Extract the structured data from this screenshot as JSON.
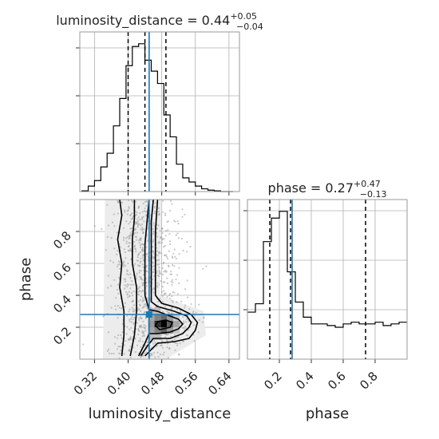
{
  "chart_data": {
    "type": "corner",
    "truth_color": "#1f77b4",
    "truth": {
      "luminosity_distance": 0.45,
      "phase": 0.28
    },
    "parameters": [
      {
        "name": "luminosity_distance",
        "label": "luminosity_distance",
        "range": [
          0.285,
          0.665
        ],
        "ticks": [
          0.32,
          0.4,
          0.48,
          0.56,
          0.64
        ],
        "tick_labels": [
          "0.32",
          "0.40",
          "0.48",
          "0.56",
          "0.64"
        ],
        "title_prefix": "luminosity_distance = 0.44",
        "title_sup": "+0.05",
        "title_sub": "−0.04",
        "median": 0.44,
        "quantiles": [
          0.4,
          0.44,
          0.49
        ],
        "histogram": {
          "bin_edges": [
            0.29,
            0.305,
            0.32,
            0.335,
            0.35,
            0.365,
            0.38,
            0.395,
            0.41,
            0.425,
            0.44,
            0.455,
            0.47,
            0.485,
            0.5,
            0.515,
            0.53,
            0.545,
            0.56,
            0.575,
            0.59,
            0.605,
            0.62,
            0.635,
            0.65
          ],
          "counts": [
            0.5,
            4,
            8,
            18,
            28,
            48,
            68,
            92,
            106,
            108,
            96,
            88,
            79,
            56,
            40,
            20,
            10,
            7,
            4,
            2,
            1,
            0.5,
            0,
            0
          ]
        }
      },
      {
        "name": "phase",
        "label": "phase",
        "range": [
          0.0,
          1.0
        ],
        "ticks": [
          0.2,
          0.4,
          0.6,
          0.8
        ],
        "tick_labels": [
          "0.2",
          "0.4",
          "0.6",
          "0.8"
        ],
        "title_prefix": "phase = 0.27",
        "title_sup": "+0.47",
        "title_sub": "−0.13",
        "median": 0.27,
        "quantiles": [
          0.14,
          0.27,
          0.74
        ],
        "histogram": {
          "bin_edges": [
            0.0,
            0.05,
            0.1,
            0.15,
            0.2,
            0.25,
            0.3,
            0.35,
            0.4,
            0.45,
            0.5,
            0.55,
            0.6,
            0.65,
            0.7,
            0.75,
            0.8,
            0.85,
            0.9,
            0.95,
            1.0
          ],
          "counts": [
            28,
            33,
            70,
            84,
            88,
            52,
            34,
            25,
            21,
            21,
            20,
            19,
            21,
            22,
            21,
            21,
            22,
            20,
            21,
            22
          ]
        }
      }
    ],
    "density_2d": {
      "x_param": "luminosity_distance",
      "y_param": "phase",
      "cells": [
        {
          "x": 0.485,
          "y": 0.22,
          "w": 1.0
        },
        {
          "x": 0.47,
          "y": 0.22,
          "w": 0.8
        },
        {
          "x": 0.5,
          "y": 0.22,
          "w": 0.6
        },
        {
          "x": 0.485,
          "y": 0.18,
          "w": 0.6
        },
        {
          "x": 0.485,
          "y": 0.26,
          "w": 0.55
        },
        {
          "x": 0.47,
          "y": 0.26,
          "w": 0.45
        },
        {
          "x": 0.47,
          "y": 0.18,
          "w": 0.45
        },
        {
          "x": 0.5,
          "y": 0.26,
          "w": 0.35
        },
        {
          "x": 0.5,
          "y": 0.18,
          "w": 0.35
        },
        {
          "x": 0.455,
          "y": 0.22,
          "w": 0.35
        },
        {
          "x": 0.455,
          "y": 0.26,
          "w": 0.3
        },
        {
          "x": 0.455,
          "y": 0.18,
          "w": 0.3
        },
        {
          "x": 0.515,
          "y": 0.22,
          "w": 0.3
        },
        {
          "x": 0.455,
          "y": 0.3,
          "w": 0.2
        },
        {
          "x": 0.47,
          "y": 0.3,
          "w": 0.2
        },
        {
          "x": 0.455,
          "y": 0.14,
          "w": 0.2
        },
        {
          "x": 0.47,
          "y": 0.14,
          "w": 0.2
        },
        {
          "x": 0.515,
          "y": 0.26,
          "w": 0.15
        },
        {
          "x": 0.515,
          "y": 0.18,
          "w": 0.15
        }
      ],
      "contours": [
        [
          [
            0.425,
            0.02
          ],
          [
            0.44,
            0.1
          ],
          [
            0.45,
            0.16
          ],
          [
            0.47,
            0.16
          ],
          [
            0.5,
            0.17
          ],
          [
            0.52,
            0.19
          ],
          [
            0.53,
            0.22
          ],
          [
            0.52,
            0.25
          ],
          [
            0.5,
            0.27
          ],
          [
            0.47,
            0.3
          ],
          [
            0.45,
            0.31
          ],
          [
            0.44,
            0.4
          ],
          [
            0.44,
            0.55
          ],
          [
            0.44,
            0.72
          ],
          [
            0.445,
            0.86
          ],
          [
            0.45,
            1.0
          ]
        ],
        [
          [
            0.405,
            0.02
          ],
          [
            0.415,
            0.15
          ],
          [
            0.42,
            0.3
          ],
          [
            0.42,
            0.45
          ],
          [
            0.41,
            0.6
          ],
          [
            0.41,
            0.75
          ],
          [
            0.415,
            0.88
          ],
          [
            0.415,
            1.0
          ]
        ],
        [
          [
            0.385,
            0.02
          ],
          [
            0.39,
            0.15
          ],
          [
            0.39,
            0.3
          ],
          [
            0.38,
            0.45
          ],
          [
            0.385,
            0.6
          ],
          [
            0.375,
            0.75
          ],
          [
            0.385,
            0.9
          ],
          [
            0.38,
            1.0
          ]
        ],
        [
          [
            0.43,
            0.02
          ],
          [
            0.445,
            0.08
          ],
          [
            0.46,
            0.13
          ],
          [
            0.5,
            0.13
          ],
          [
            0.53,
            0.16
          ],
          [
            0.545,
            0.2
          ],
          [
            0.55,
            0.23
          ],
          [
            0.54,
            0.27
          ],
          [
            0.51,
            0.3
          ],
          [
            0.47,
            0.33
          ],
          [
            0.455,
            0.36
          ],
          [
            0.455,
            0.5
          ],
          [
            0.455,
            0.7
          ],
          [
            0.455,
            0.86
          ],
          [
            0.46,
            1.0
          ]
        ],
        [
          [
            0.44,
            0.02
          ],
          [
            0.455,
            0.06
          ],
          [
            0.47,
            0.1
          ],
          [
            0.51,
            0.11
          ],
          [
            0.545,
            0.13
          ],
          [
            0.56,
            0.18
          ],
          [
            0.565,
            0.23
          ],
          [
            0.55,
            0.28
          ],
          [
            0.52,
            0.32
          ],
          [
            0.48,
            0.35
          ],
          [
            0.465,
            0.4
          ],
          [
            0.465,
            0.6
          ],
          [
            0.465,
            0.8
          ],
          [
            0.47,
            1.0
          ]
        ]
      ],
      "inner_blob": [
        [
          0.475,
          0.185
        ],
        [
          0.5,
          0.2
        ],
        [
          0.505,
          0.23
        ],
        [
          0.49,
          0.245
        ],
        [
          0.47,
          0.235
        ],
        [
          0.465,
          0.21
        ]
      ]
    }
  }
}
